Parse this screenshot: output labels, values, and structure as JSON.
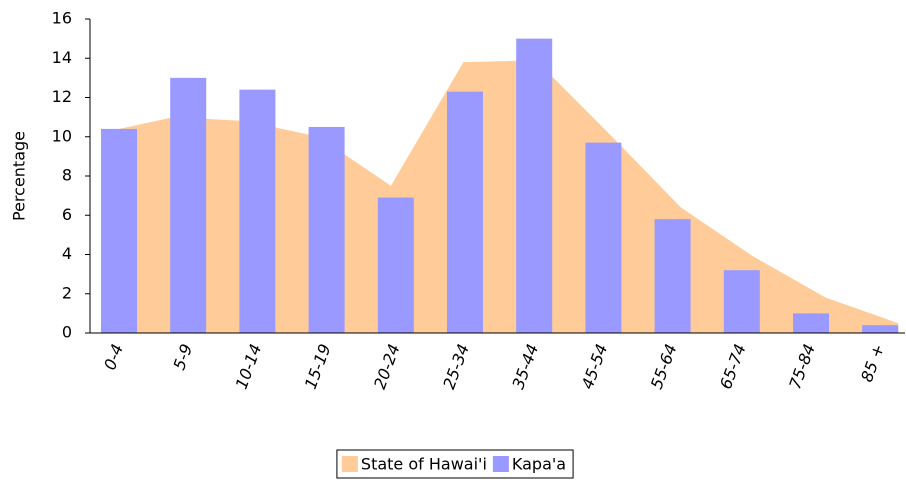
{
  "chart_data": {
    "type": "bar_area",
    "y_label": "Percentage",
    "categories": [
      "0-4",
      "5-9",
      "10-14",
      "15-19",
      "20-24",
      "25-34",
      "35-44",
      "45-54",
      "55-64",
      "65-74",
      "75-84",
      "85 +"
    ],
    "series": [
      {
        "name": "State of Hawai'i",
        "color": "#ffcc99",
        "kind": "area",
        "values": [
          10.2,
          11.0,
          10.8,
          10.0,
          7.5,
          13.8,
          13.9,
          10.2,
          6.4,
          3.9,
          1.8,
          0.5
        ]
      },
      {
        "name": "Kapa'a",
        "color": "#9999ff",
        "kind": "bar",
        "values": [
          10.4,
          13.0,
          12.4,
          10.5,
          6.9,
          12.3,
          15.0,
          9.7,
          5.8,
          3.2,
          1.0,
          0.4
        ]
      }
    ],
    "ylim": [
      0,
      16
    ],
    "yticks": [
      0,
      2,
      4,
      6,
      8,
      10,
      12,
      14,
      16
    ]
  }
}
